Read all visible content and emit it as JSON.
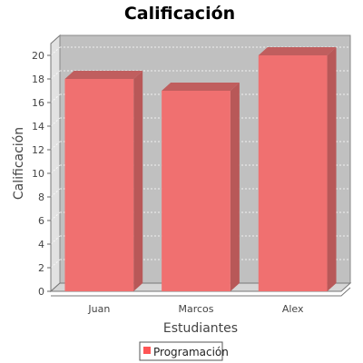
{
  "chart_data": {
    "type": "bar",
    "title": "Calificación",
    "xlabel": "Estudiantes",
    "ylabel": "Calificación",
    "categories": [
      "Juan",
      "Marcos",
      "Alex"
    ],
    "series": [
      {
        "name": "Programación",
        "values": [
          18,
          17,
          20
        ]
      }
    ],
    "ylim": [
      0,
      21
    ],
    "yticks": [
      0,
      2,
      4,
      6,
      8,
      10,
      12,
      14,
      16,
      18,
      20
    ],
    "grid": true,
    "legend": "bottom-center",
    "colors": {
      "bar_front": "#F07070",
      "bar_side": "#B85858",
      "bar_top": "#C05E5E",
      "plot_bg": "#C0C0C0",
      "wall": "#E2E2E2",
      "floor": "#D5D5D5",
      "legend_swatch": "#FF5555"
    }
  }
}
